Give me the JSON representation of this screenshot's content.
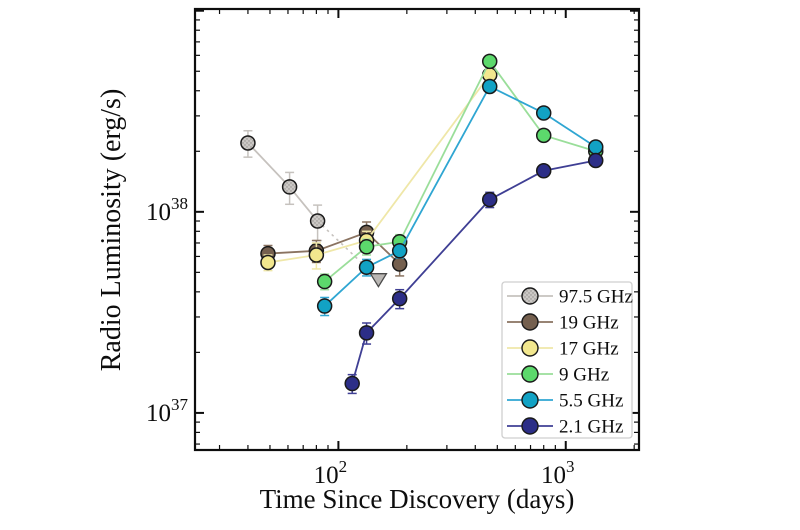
{
  "figure": {
    "background": "#ffffff"
  },
  "chart_data": {
    "type": "line",
    "title": "",
    "xlabel": "Time Since Discovery (days)",
    "ylabel": "Radio Luminosity (erg/s)",
    "x_scale": "log",
    "y_scale": "log",
    "x_range": [
      23.4,
      2100
    ],
    "y_range": [
      6.54e+36,
      1.02e+39
    ],
    "grid": false,
    "legend_position": "lower right",
    "x_major_ticks": [
      {
        "value": 100,
        "exp": "2"
      },
      {
        "value": 1000,
        "exp": "3"
      }
    ],
    "x_minor_ticks": [
      30,
      40,
      50,
      60,
      70,
      80,
      90,
      200,
      300,
      400,
      500,
      600,
      700,
      800,
      900,
      2000
    ],
    "y_major_ticks": [
      {
        "value": 1e+37,
        "exp": "37"
      },
      {
        "value": 1e+38,
        "exp": "38"
      },
      {
        "value": 1e+39,
        "exp": null
      }
    ],
    "y_minor_ticks": [
      7e+36,
      8e+36,
      9e+36,
      2e+37,
      3e+37,
      4e+37,
      5e+37,
      6e+37,
      7e+37,
      8e+37,
      9e+37,
      2e+38,
      3e+38,
      4e+38,
      5e+38,
      6e+38,
      7e+38,
      8e+38,
      9e+38
    ],
    "upper_limit_marker": {
      "fill": "#bab7b4",
      "edge": "#4a4a4a"
    },
    "series": [
      {
        "name": "97.5 GHz",
        "marker_color": "#c9c5c2",
        "line_color": "#c6c2be",
        "hatch": "dots",
        "points": [
          {
            "x": 40,
            "y": 2.2e+38,
            "yerr": 3.3e+37
          },
          {
            "x": 61,
            "y": 1.33e+38,
            "yerr": 2.4e+37
          },
          {
            "x": 81,
            "y": 9e+37,
            "yerr": 1.8e+37
          }
        ],
        "upper_limit": {
          "x": 150,
          "y": 4.65e+37
        }
      },
      {
        "name": "19 GHz",
        "marker_color": "#75604f",
        "line_color": "#8a7361",
        "points": [
          {
            "x": 49,
            "y": 6.2e+37,
            "yerr": 6e+36
          },
          {
            "x": 80,
            "y": 6.4e+37,
            "yerr": 8e+36
          },
          {
            "x": 133,
            "y": 7.9e+37,
            "yerr": 1e+37
          },
          {
            "x": 186,
            "y": 5.5e+37,
            "yerr": 7e+36
          }
        ]
      },
      {
        "name": "17 GHz",
        "marker_color": "#f2e78e",
        "line_color": "#efe7a8",
        "points": [
          {
            "x": 49,
            "y": 5.6e+37,
            "yerr": 5e+36
          },
          {
            "x": 80,
            "y": 6.1e+37,
            "yerr": 9e+36
          },
          {
            "x": 133,
            "y": 7.2e+37,
            "yerr": 8e+36
          },
          {
            "x": 463,
            "y": 4.8e+38,
            "yerr": 0
          }
        ]
      },
      {
        "name": "9 GHz",
        "marker_color": "#5cd96c",
        "line_color": "#9ade9a",
        "points": [
          {
            "x": 87,
            "y": 4.5e+37,
            "yerr": 4e+36
          },
          {
            "x": 133,
            "y": 6.7e+37,
            "yerr": 6e+36
          },
          {
            "x": 186,
            "y": 7.1e+37,
            "yerr": 6e+36
          },
          {
            "x": 463,
            "y": 5.6e+38,
            "yerr": 0
          },
          {
            "x": 800,
            "y": 2.4e+38,
            "yerr": 0
          },
          {
            "x": 1355,
            "y": 2e+38,
            "yerr": 0
          }
        ]
      },
      {
        "name": "5.5 GHz",
        "marker_color": "#12a2c4",
        "line_color": "#2fa6d2",
        "points": [
          {
            "x": 87,
            "y": 3.4e+37,
            "yerr": 3.5e+36
          },
          {
            "x": 133,
            "y": 5.3e+37,
            "yerr": 5e+36
          },
          {
            "x": 186,
            "y": 6.4e+37,
            "yerr": 5e+36
          },
          {
            "x": 463,
            "y": 4.2e+38,
            "yerr": 0
          },
          {
            "x": 800,
            "y": 3.1e+38,
            "yerr": 0
          },
          {
            "x": 1355,
            "y": 2.1e+38,
            "yerr": 0
          }
        ]
      },
      {
        "name": "2.1 GHz",
        "marker_color": "#2c2e87",
        "line_color": "#3f3f94",
        "points": [
          {
            "x": 115,
            "y": 1.4e+37,
            "yerr": 1.5e+36
          },
          {
            "x": 133,
            "y": 2.5e+37,
            "yerr": 3e+36
          },
          {
            "x": 186,
            "y": 3.7e+37,
            "yerr": 4e+36
          },
          {
            "x": 463,
            "y": 1.15e+38,
            "yerr": 1e+37
          },
          {
            "x": 800,
            "y": 1.6e+38,
            "yerr": 9e+36
          },
          {
            "x": 1355,
            "y": 1.8e+38,
            "yerr": 1e+37
          }
        ]
      }
    ]
  }
}
